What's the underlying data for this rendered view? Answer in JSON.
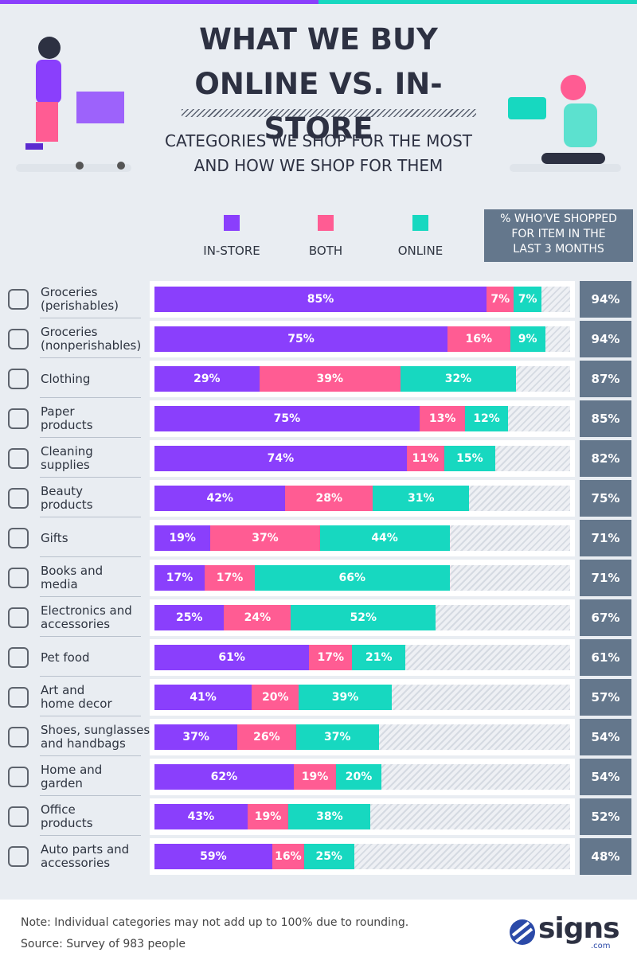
{
  "chart_data": {
    "type": "bar",
    "title": "WHAT WE BUY\nONLINE VS. IN-STORE",
    "subtitle": "CATEGORIES WE SHOP FOR THE MOST\nAND HOW WE SHOP FOR THEM",
    "categories": [
      "Groceries\n(perishables)",
      "Groceries\n(nonperishables)",
      "Clothing",
      "Paper\nproducts",
      "Cleaning\nsupplies",
      "Beauty\nproducts",
      "Gifts",
      "Books and\nmedia",
      "Electronics and\naccessories",
      "Pet food",
      "Art and\nhome decor",
      "Shoes, sunglasses,\nand handbags",
      "Home and\ngarden",
      "Office\nproducts",
      "Auto parts and\naccessories"
    ],
    "series": [
      {
        "name": "IN-STORE",
        "color": "#8a3ffc",
        "values": [
          85,
          75,
          29,
          75,
          74,
          42,
          19,
          17,
          25,
          61,
          41,
          37,
          62,
          43,
          59
        ],
        "value_labels": [
          "85%",
          "75%",
          "29%",
          "75%",
          "74%",
          "42%",
          "19%",
          "17%",
          "25%",
          "61%",
          "41%",
          "37%",
          "62%",
          "43%",
          "59%"
        ]
      },
      {
        "name": "BOTH",
        "color": "#ff5c93",
        "values": [
          7,
          16,
          39,
          13,
          11,
          28,
          37,
          17,
          24,
          17,
          20,
          26,
          19,
          19,
          16
        ],
        "value_labels": [
          "7%",
          "16%",
          "39%",
          "13%",
          "11%",
          "28%",
          "37%",
          "17%",
          "24%",
          "17%",
          "20%",
          "26%",
          "19%",
          "19%",
          "16%"
        ]
      },
      {
        "name": "ONLINE",
        "color": "#17d8c0",
        "values": [
          7,
          9,
          32,
          12,
          15,
          31,
          44,
          66,
          52,
          21,
          39,
          37,
          20,
          38,
          25
        ],
        "value_labels": [
          "7%",
          "9%",
          "32%",
          "12%",
          "15%",
          "31%",
          "44%",
          "66%",
          "52%",
          "21%",
          "39%",
          "37%",
          "20%",
          "38%",
          "25%"
        ]
      }
    ],
    "shopped": {
      "name": "% WHO'VE SHOPPED\nFOR ITEM IN THE\nLAST 3 MONTHS",
      "color": "#64778c",
      "values": [
        94,
        94,
        87,
        85,
        82,
        75,
        71,
        71,
        67,
        61,
        57,
        54,
        54,
        52,
        48
      ],
      "value_labels": [
        "94%",
        "94%",
        "87%",
        "85%",
        "82%",
        "75%",
        "71%",
        "71%",
        "67%",
        "61%",
        "57%",
        "54%",
        "54%",
        "52%",
        "48%"
      ]
    },
    "xlim": [
      0,
      100
    ],
    "note": "Note: Individual categories may not add up to 100% due to rounding.",
    "source": "Source: Survey of 983 people",
    "logo": "signs",
    "logo_suffix": ".com"
  }
}
